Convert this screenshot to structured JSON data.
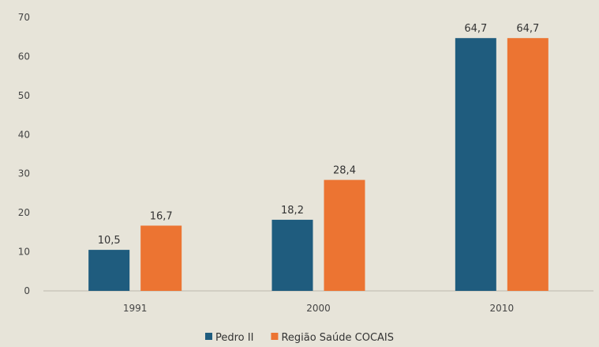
{
  "chart_data": {
    "type": "bar",
    "categories": [
      "1991",
      "2000",
      "2010"
    ],
    "series": [
      {
        "name": "Pedro II",
        "values": [
          10.5,
          18.2,
          64.7
        ],
        "labels": [
          "10,5",
          "18,2",
          "64,7"
        ],
        "color": "#1f5c7e"
      },
      {
        "name": "Região Saúde COCAIS",
        "values": [
          16.7,
          28.4,
          64.7
        ],
        "labels": [
          "16,7",
          "28,4",
          "64,7"
        ],
        "color": "#ec7432"
      }
    ],
    "yticks": [
      "0",
      "10",
      "20",
      "30",
      "40",
      "50",
      "60",
      "70"
    ],
    "ylim": [
      0,
      70
    ],
    "grid": false,
    "legend": "bottom-center",
    "background": "#e7e4d9"
  }
}
